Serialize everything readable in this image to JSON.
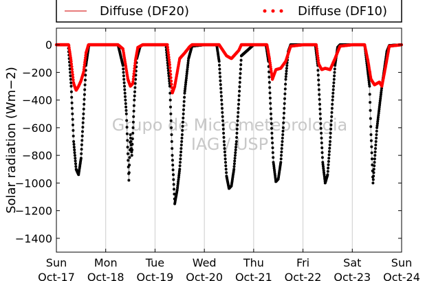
{
  "chart_data": {
    "type": "scatter",
    "title": "",
    "ylabel": "Solar radiation (Wm−2)",
    "ylim": [
      -1500,
      120
    ],
    "xlim": [
      0,
      7
    ],
    "yticks": [
      0,
      -200,
      -400,
      -600,
      -800,
      -1000,
      -1200,
      -1400
    ],
    "xticks": [
      {
        "pos": 0,
        "day": "Sun",
        "date": "Oct-17"
      },
      {
        "pos": 1,
        "day": "Mon",
        "date": "Oct-18"
      },
      {
        "pos": 2,
        "day": "Tue",
        "date": "Oct-19"
      },
      {
        "pos": 3,
        "day": "Wed",
        "date": "Oct-20"
      },
      {
        "pos": 4,
        "day": "Thu",
        "date": "Oct-21"
      },
      {
        "pos": 5,
        "day": "Fri",
        "date": "Oct-22"
      },
      {
        "pos": 6,
        "day": "Sat",
        "date": "Oct-23"
      },
      {
        "pos": 7,
        "day": "Sun",
        "date": "Oct-24"
      }
    ],
    "grid": "vertical",
    "legend": "top",
    "watermark": [
      "Grupo de Micrometeorologia",
      "IAG / USP"
    ],
    "series": [
      {
        "name": "Diffuse (DF20)",
        "color": "#e05050",
        "style": "line",
        "x": [
          0,
          0.25,
          0.3,
          0.35,
          0.4,
          0.45,
          0.5,
          0.55,
          0.6,
          0.65,
          0.7,
          0.75,
          1,
          1.25,
          1.35,
          1.45,
          1.5,
          1.55,
          1.6,
          1.65,
          1.75,
          2,
          2.25,
          2.3,
          2.35,
          2.4,
          2.45,
          2.5,
          2.6,
          2.7,
          2.75,
          3,
          3.3,
          3.45,
          3.55,
          3.7,
          3.75,
          4,
          4.27,
          4.32,
          4.38,
          4.45,
          4.55,
          4.65,
          4.75,
          5,
          5.27,
          5.32,
          5.38,
          5.45,
          5.55,
          5.65,
          5.75,
          6,
          6.25,
          6.32,
          6.38,
          6.45,
          6.55,
          6.6,
          6.68,
          6.75,
          7
        ],
        "y": [
          0,
          0,
          -120,
          -280,
          -330,
          -300,
          -260,
          -200,
          -60,
          0,
          0,
          0,
          0,
          0,
          -30,
          -250,
          -300,
          -280,
          -120,
          -20,
          0,
          0,
          0,
          -150,
          -350,
          -300,
          -200,
          -100,
          -60,
          -15,
          0,
          0,
          0,
          -80,
          -100,
          -40,
          0,
          0,
          0,
          -100,
          -250,
          -180,
          -170,
          -120,
          -10,
          0,
          0,
          -140,
          -180,
          -170,
          -180,
          -100,
          -10,
          0,
          0,
          -120,
          -250,
          -290,
          -270,
          -300,
          -150,
          -10,
          0
        ]
      },
      {
        "name": "Diffuse (DF10)",
        "color": "#ff0000",
        "style": "dots",
        "x": [
          0,
          0.25,
          0.3,
          0.35,
          0.4,
          0.45,
          0.5,
          0.55,
          0.6,
          0.65,
          0.7,
          0.75,
          1,
          1.25,
          1.35,
          1.45,
          1.5,
          1.55,
          1.6,
          1.65,
          1.75,
          2,
          2.25,
          2.3,
          2.35,
          2.4,
          2.45,
          2.5,
          2.6,
          2.7,
          2.75,
          3,
          3.3,
          3.45,
          3.55,
          3.7,
          3.75,
          4,
          4.27,
          4.32,
          4.38,
          4.45,
          4.55,
          4.65,
          4.75,
          5,
          5.27,
          5.32,
          5.38,
          5.45,
          5.55,
          5.65,
          5.75,
          6,
          6.25,
          6.32,
          6.38,
          6.45,
          6.55,
          6.6,
          6.68,
          6.75,
          7
        ],
        "y": [
          0,
          0,
          -120,
          -280,
          -330,
          -300,
          -260,
          -200,
          -60,
          0,
          0,
          0,
          0,
          0,
          -30,
          -250,
          -300,
          -280,
          -120,
          -20,
          0,
          0,
          0,
          -150,
          -350,
          -300,
          -200,
          -100,
          -60,
          -15,
          0,
          0,
          0,
          -80,
          -100,
          -40,
          0,
          0,
          0,
          -100,
          -250,
          -180,
          -170,
          -120,
          -10,
          0,
          0,
          -140,
          -180,
          -170,
          -180,
          -100,
          -10,
          0,
          0,
          -120,
          -250,
          -290,
          -270,
          -300,
          -150,
          -10,
          0
        ]
      },
      {
        "name": "",
        "color": "#000000",
        "style": "dots-line",
        "x": [
          0,
          0.24,
          0.3,
          0.35,
          0.4,
          0.45,
          0.5,
          0.55,
          0.6,
          0.66,
          0.7,
          0.75,
          1,
          1.25,
          1.35,
          1.42,
          1.47,
          1.5,
          1.53,
          1.58,
          1.63,
          1.7,
          1.75,
          2,
          2.22,
          2.3,
          2.35,
          2.4,
          2.45,
          2.5,
          2.55,
          2.6,
          2.68,
          2.75,
          3,
          3.25,
          3.3,
          3.35,
          3.4,
          3.45,
          3.5,
          3.55,
          3.6,
          3.65,
          3.7,
          3.75,
          4,
          4.25,
          4.3,
          4.35,
          4.4,
          4.45,
          4.5,
          4.55,
          4.6,
          4.65,
          4.7,
          4.75,
          5,
          5.25,
          5.3,
          5.35,
          5.4,
          5.45,
          5.5,
          5.55,
          5.6,
          5.65,
          5.7,
          5.75,
          6,
          6.25,
          6.35,
          6.38,
          6.42,
          6.5,
          6.6,
          6.7,
          6.75,
          7
        ],
        "y": [
          0,
          0,
          -300,
          -700,
          -900,
          -940,
          -820,
          -500,
          -150,
          0,
          0,
          0,
          0,
          0,
          -150,
          -500,
          -980,
          -650,
          -800,
          -400,
          -100,
          -10,
          0,
          0,
          0,
          -300,
          -800,
          -1150,
          -1050,
          -900,
          -650,
          -350,
          -100,
          -10,
          0,
          0,
          -120,
          -400,
          -700,
          -950,
          -1040,
          -1020,
          -900,
          -700,
          -400,
          -80,
          0,
          0,
          -120,
          -500,
          -850,
          -990,
          -970,
          -850,
          -600,
          -250,
          -50,
          0,
          0,
          0,
          -150,
          -500,
          -850,
          -1000,
          -940,
          -700,
          -400,
          -150,
          -20,
          0,
          0,
          0,
          -300,
          -650,
          -1000,
          -600,
          -300,
          -50,
          -5,
          0
        ]
      }
    ]
  }
}
